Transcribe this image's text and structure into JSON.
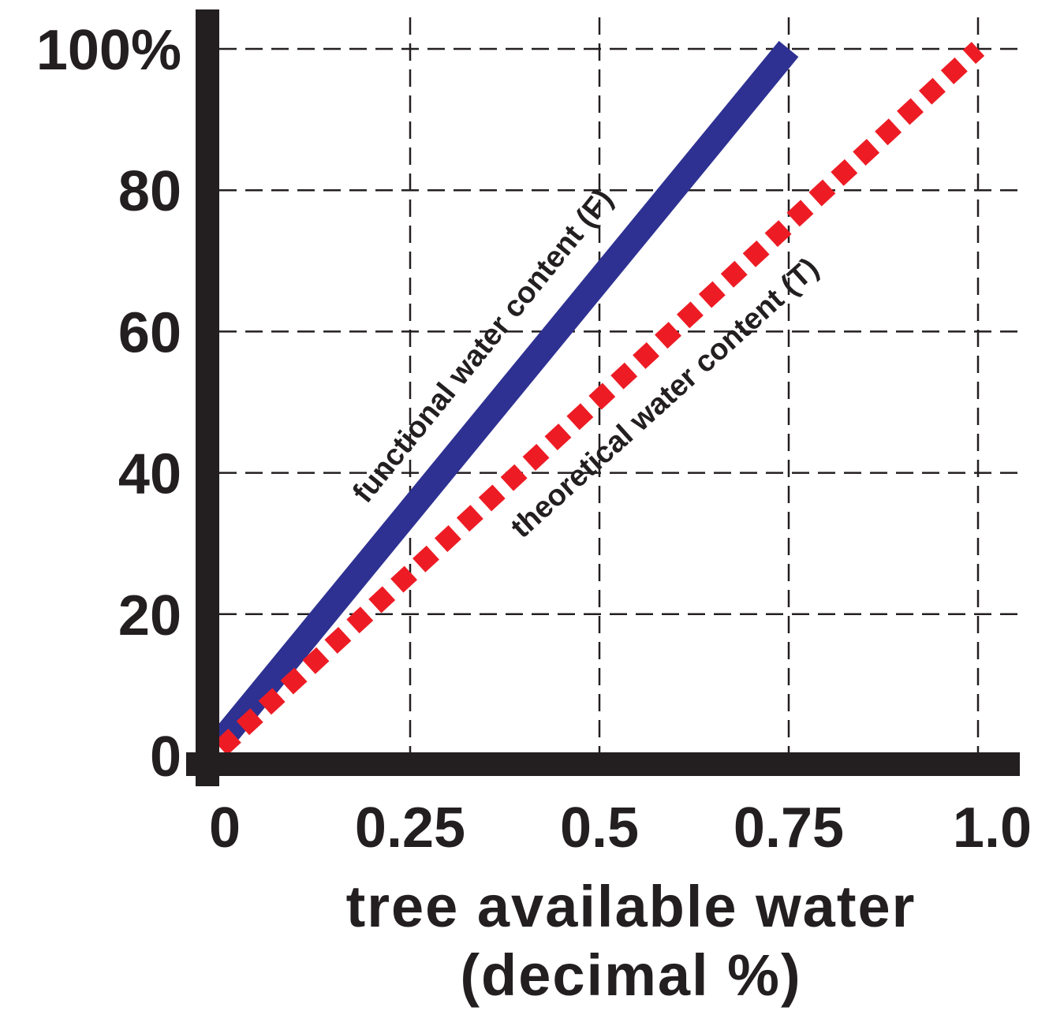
{
  "chart_data": {
    "type": "line",
    "title": "",
    "xlabel_line1": "tree  available  water",
    "xlabel_line2": "(decimal %)",
    "ylabel": "",
    "xlim": [
      0,
      1.0
    ],
    "ylim": [
      0,
      100
    ],
    "x_ticks": [
      {
        "value": 0,
        "label": "0"
      },
      {
        "value": 0.25,
        "label": "0.25"
      },
      {
        "value": 0.5,
        "label": "0.5"
      },
      {
        "value": 0.75,
        "label": "0.75"
      },
      {
        "value": 1.0,
        "label": "1.0"
      }
    ],
    "y_ticks": [
      {
        "value": 0,
        "label": "0"
      },
      {
        "value": 20,
        "label": "20"
      },
      {
        "value": 40,
        "label": "40"
      },
      {
        "value": 60,
        "label": "60"
      },
      {
        "value": 80,
        "label": "80"
      },
      {
        "value": 100,
        "label": "100%"
      }
    ],
    "grid": true,
    "series": [
      {
        "name": "functional water content (F)",
        "style": "solid",
        "color": "#2e3192",
        "x": [
          0,
          0.75
        ],
        "y": [
          2,
          100
        ]
      },
      {
        "name": "theoretical water content (T)",
        "style": "dotted",
        "color": "#ed1c24",
        "x": [
          0,
          1.0
        ],
        "y": [
          1,
          100
        ]
      }
    ]
  }
}
